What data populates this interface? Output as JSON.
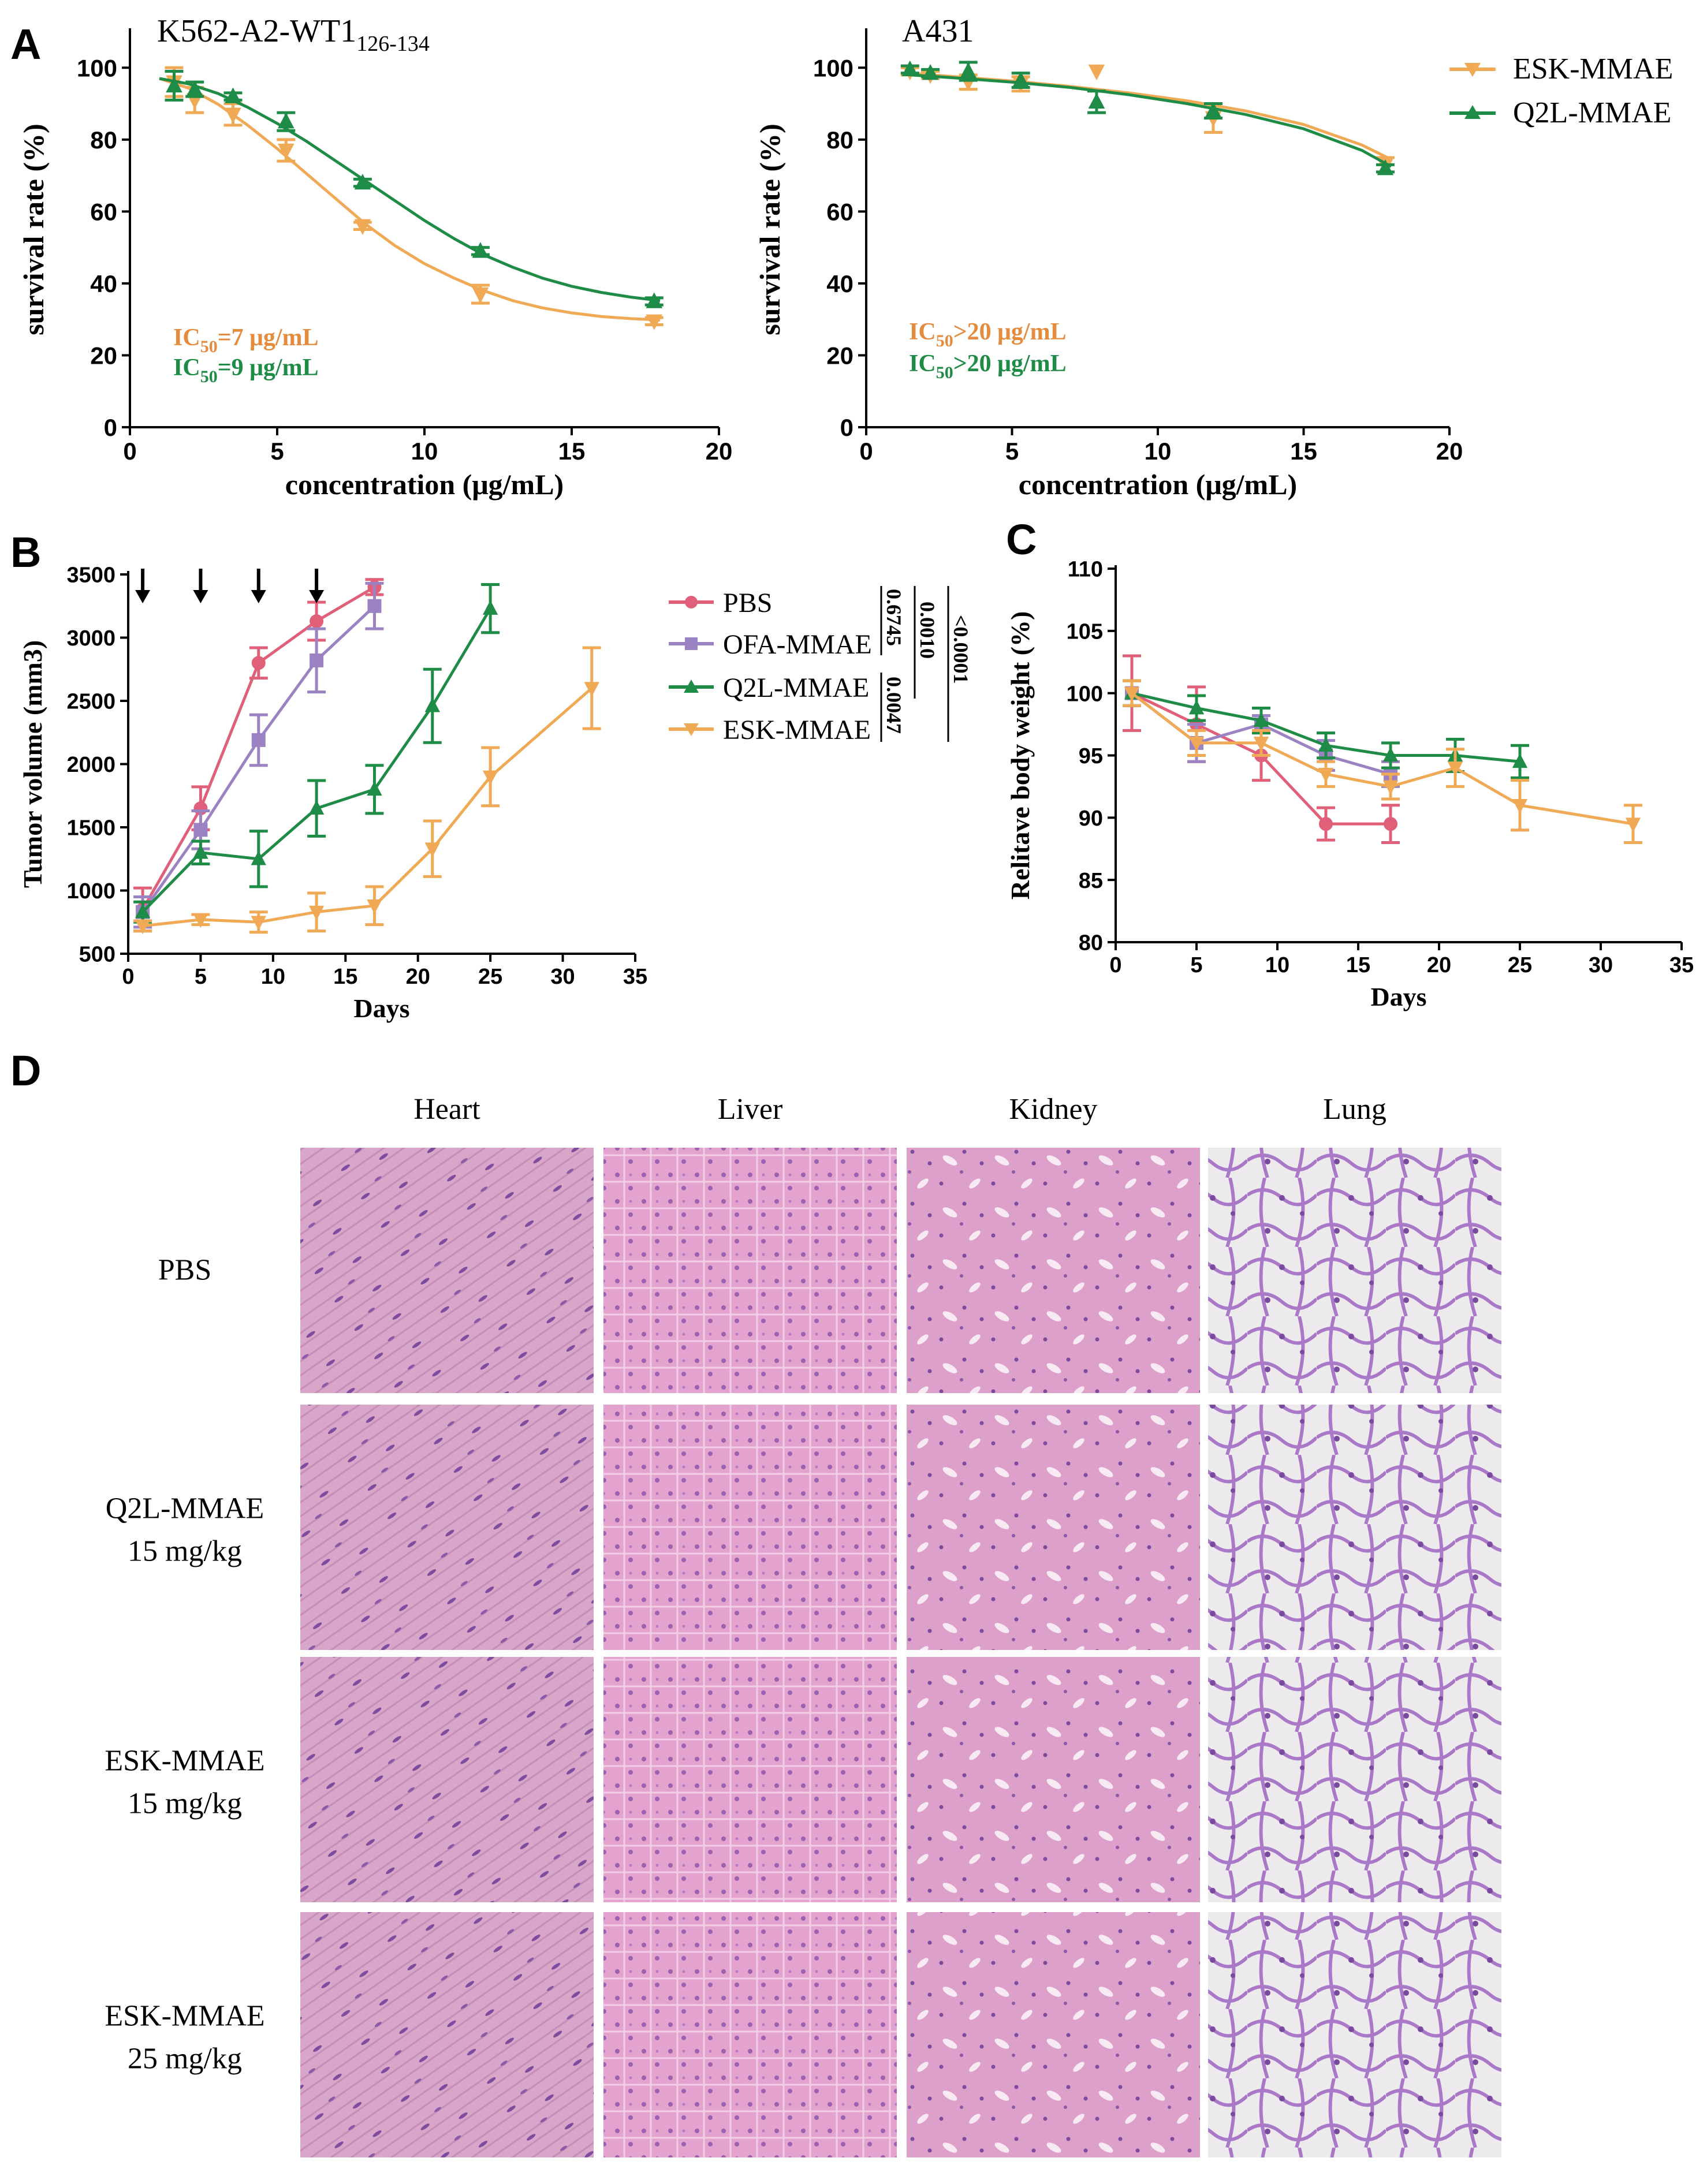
{
  "colors": {
    "esk": "#F0A955",
    "q2l": "#1E8C46",
    "pbs": "#E0607A",
    "ofa": "#9B82C2",
    "ic_orange": "#E48B3D",
    "ic_green": "#1E8C46"
  },
  "panels": {
    "A": "A",
    "B": "B",
    "C": "C",
    "D": "D"
  },
  "panel_a": {
    "legend": [
      "ESK-MMAE",
      "Q2L-MMAE"
    ],
    "left": {
      "title_main": "K562-A2-WT1",
      "title_sub": "126-134",
      "ic50_orange": {
        "pre": "IC",
        "sub": "50",
        "post": "=7 μg/mL"
      },
      "ic50_green": {
        "pre": "IC",
        "sub": "50",
        "post": "=9 μg/mL"
      }
    },
    "right": {
      "title_main": "A431",
      "ic50_orange": {
        "pre": "IC",
        "sub": "50",
        "post": ">20 μg/mL"
      },
      "ic50_green": {
        "pre": "IC",
        "sub": "50",
        "post": ">20 μg/mL"
      }
    }
  },
  "panel_b": {
    "legend": [
      "PBS",
      "OFA-MMAE",
      "Q2L-MMAE",
      "ESK-MMAE"
    ],
    "pvalues": [
      "0.6745",
      "0.0010",
      "<0.0001",
      "0.0047"
    ],
    "arrow_days": [
      1,
      5,
      9,
      13
    ]
  },
  "panel_d": {
    "columns": [
      "Heart",
      "Liver",
      "Kidney",
      "Lung"
    ],
    "rows": [
      {
        "line1": "PBS",
        "line2": ""
      },
      {
        "line1": "Q2L-MMAE",
        "line2": "15 mg/kg"
      },
      {
        "line1": "ESK-MMAE",
        "line2": "15 mg/kg"
      },
      {
        "line1": "ESK-MMAE",
        "line2": "25 mg/kg"
      }
    ]
  },
  "chart_data": [
    {
      "type": "scatter",
      "title": "K562-A2-WT1126-134",
      "xlabel": "concentration (μg/mL)",
      "ylabel": "survival rate (%)",
      "xlim": [
        0,
        20
      ],
      "ylim": [
        0,
        110
      ],
      "xticks": [
        0,
        5,
        10,
        15,
        20
      ],
      "yticks": [
        0,
        20,
        40,
        60,
        80,
        100
      ],
      "series": [
        {
          "name": "ESK-MMAE",
          "marker": "down",
          "x": [
            1.5,
            2.2,
            3.5,
            5.3,
            7.9,
            11.9,
            17.8
          ],
          "y": [
            96,
            91,
            87,
            77,
            56,
            37,
            29.5
          ],
          "err": [
            4,
            3.5,
            3,
            3,
            1,
            2.5,
            1
          ],
          "fit": [
            [
              1,
              97
            ],
            [
              2,
              94.3
            ],
            [
              3,
              89.8
            ],
            [
              4,
              84
            ],
            [
              5,
              77.5
            ],
            [
              6,
              70.5
            ],
            [
              7,
              63.5
            ],
            [
              8,
              56.5
            ],
            [
              9,
              50.5
            ],
            [
              10,
              45.5
            ],
            [
              11,
              41.5
            ],
            [
              12,
              38
            ],
            [
              13,
              35.2
            ],
            [
              14,
              33.2
            ],
            [
              15,
              31.8
            ],
            [
              16,
              30.8
            ],
            [
              17,
              30.2
            ],
            [
              18,
              29.8
            ]
          ]
        },
        {
          "name": "Q2L-MMAE",
          "marker": "up",
          "x": [
            1.5,
            2.2,
            3.5,
            5.3,
            7.9,
            11.9,
            17.8
          ],
          "y": [
            95,
            94,
            92,
            85,
            68,
            49,
            35
          ],
          "err": [
            4,
            2,
            1,
            2.5,
            1,
            1,
            1
          ],
          "fit": [
            [
              1,
              97
            ],
            [
              2,
              95.5
            ],
            [
              3,
              92.8
            ],
            [
              4,
              89
            ],
            [
              5,
              84.5
            ],
            [
              6,
              79.5
            ],
            [
              7,
              74
            ],
            [
              8,
              68.5
            ],
            [
              9,
              63
            ],
            [
              10,
              57.5
            ],
            [
              11,
              52.5
            ],
            [
              12,
              48
            ],
            [
              13,
              44.5
            ],
            [
              14,
              41.5
            ],
            [
              15,
              39.2
            ],
            [
              16,
              37.5
            ],
            [
              17,
              36.2
            ],
            [
              18,
              35.2
            ]
          ]
        }
      ]
    },
    {
      "type": "scatter",
      "title": "A431",
      "xlabel": "concentration (μg/mL)",
      "ylabel": "survival rate (%)",
      "xlim": [
        0,
        20
      ],
      "ylim": [
        0,
        110
      ],
      "xticks": [
        0,
        5,
        10,
        15,
        20
      ],
      "yticks": [
        0,
        20,
        40,
        60,
        80,
        100
      ],
      "series": [
        {
          "name": "ESK-MMAE",
          "marker": "down",
          "x": [
            1.5,
            2.2,
            3.5,
            5.3,
            7.9,
            11.9,
            17.8
          ],
          "y": [
            99,
            98,
            96,
            95.5,
            99,
            86,
            73
          ],
          "err": [
            1,
            1,
            2,
            2,
            0,
            4,
            2
          ],
          "fit": [
            [
              1.5,
              98.5
            ],
            [
              3,
              97.5
            ],
            [
              5,
              96.3
            ],
            [
              7,
              94.8
            ],
            [
              9,
              93
            ],
            [
              11,
              90.8
            ],
            [
              13,
              88
            ],
            [
              15,
              84.2
            ],
            [
              17,
              78.5
            ],
            [
              18,
              74.5
            ]
          ]
        },
        {
          "name": "Q2L-MMAE",
          "marker": "up",
          "x": [
            1.5,
            2.2,
            3.5,
            5.3,
            7.9,
            11.9,
            17.8
          ],
          "y": [
            99.5,
            98.5,
            99,
            96.5,
            90.5,
            88,
            72
          ],
          "err": [
            1,
            1,
            2.5,
            2,
            3,
            2,
            1
          ],
          "fit": [
            [
              1.5,
              98
            ],
            [
              3,
              97.2
            ],
            [
              5,
              96
            ],
            [
              7,
              94.5
            ],
            [
              9,
              92.5
            ],
            [
              11,
              90
            ],
            [
              13,
              87
            ],
            [
              15,
              83
            ],
            [
              17,
              77
            ],
            [
              18,
              72.5
            ]
          ]
        }
      ]
    },
    {
      "type": "line",
      "title": "",
      "xlabel": "Days",
      "ylabel": "Tumor volume (mm3)",
      "xlim": [
        0,
        35
      ],
      "ylim": [
        500,
        3500
      ],
      "xticks": [
        0,
        5,
        10,
        15,
        20,
        25,
        30,
        35
      ],
      "yticks": [
        500,
        1000,
        1500,
        2000,
        2500,
        3000,
        3500
      ],
      "series": [
        {
          "name": "PBS",
          "marker": "circle",
          "x": [
            1,
            5,
            9,
            13,
            17
          ],
          "y": [
            850,
            1650,
            2800,
            3130,
            3400
          ],
          "err": [
            170,
            170,
            120,
            150,
            60
          ]
        },
        {
          "name": "OFA-MMAE",
          "marker": "square",
          "x": [
            1,
            5,
            9,
            13,
            17
          ],
          "y": [
            830,
            1480,
            2190,
            2820,
            3250
          ],
          "err": [
            120,
            150,
            200,
            250,
            180
          ]
        },
        {
          "name": "Q2L-MMAE",
          "marker": "up",
          "x": [
            1,
            5,
            9,
            13,
            17,
            21,
            25
          ],
          "y": [
            830,
            1300,
            1250,
            1650,
            1800,
            2460,
            3230
          ],
          "err": [
            80,
            90,
            220,
            220,
            190,
            290,
            190
          ]
        },
        {
          "name": "ESK-MMAE",
          "marker": "down",
          "x": [
            1,
            5,
            9,
            13,
            17,
            21,
            25,
            32
          ],
          "y": [
            720,
            770,
            750,
            830,
            880,
            1330,
            1900,
            2600
          ],
          "err": [
            40,
            40,
            80,
            150,
            150,
            220,
            230,
            320
          ]
        }
      ]
    },
    {
      "type": "line",
      "title": "",
      "xlabel": "Days",
      "ylabel": "Relitave body weight (%)",
      "xlim": [
        0,
        35
      ],
      "ylim": [
        80,
        110
      ],
      "xticks": [
        0,
        5,
        10,
        15,
        20,
        25,
        30,
        35
      ],
      "yticks": [
        80,
        85,
        90,
        95,
        100,
        105,
        110
      ],
      "series": [
        {
          "name": "PBS",
          "marker": "circle",
          "x": [
            1,
            5,
            9,
            13,
            17
          ],
          "y": [
            100,
            97.5,
            95,
            89.5,
            89.5
          ],
          "err": [
            3,
            3,
            2,
            1.3,
            1.5
          ]
        },
        {
          "name": "OFA-MMAE",
          "marker": "square",
          "x": [
            1,
            5,
            9,
            13,
            17
          ],
          "y": [
            100,
            96,
            97.5,
            95,
            93.5
          ],
          "err": [
            1,
            1.5,
            0.7,
            1.2,
            1
          ]
        },
        {
          "name": "Q2L-MMAE",
          "marker": "up",
          "x": [
            1,
            5,
            9,
            13,
            17,
            21,
            25
          ],
          "y": [
            100,
            98.8,
            97.8,
            95.8,
            95,
            95,
            94.5
          ],
          "err": [
            1,
            1,
            1,
            1,
            1,
            1.3,
            1.3
          ]
        },
        {
          "name": "ESK-MMAE",
          "marker": "down",
          "x": [
            1,
            5,
            9,
            13,
            17,
            21,
            25,
            32
          ],
          "y": [
            100,
            96,
            96,
            93.5,
            92.5,
            94,
            91,
            89.5
          ],
          "err": [
            1,
            1,
            1,
            1,
            1,
            1.5,
            2,
            1.5
          ]
        }
      ]
    }
  ]
}
